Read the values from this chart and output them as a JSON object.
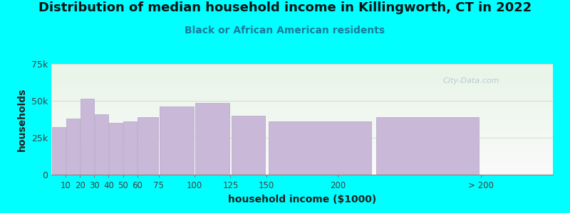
{
  "title": "Distribution of median household income in Killingworth, CT in 2022",
  "subtitle": "Black or African American residents",
  "xlabel": "household income ($1000)",
  "ylabel": "households",
  "bar_lefts": [
    0,
    10,
    20,
    30,
    40,
    50,
    60,
    75,
    100,
    125,
    150,
    225
  ],
  "bar_widths": [
    10,
    10,
    10,
    10,
    10,
    10,
    15,
    25,
    25,
    25,
    75,
    75
  ],
  "values": [
    32000,
    38000,
    51500,
    41000,
    35000,
    36000,
    39000,
    46000,
    48500,
    40000,
    36000,
    39000
  ],
  "xtick_positions": [
    10,
    20,
    30,
    40,
    50,
    60,
    75,
    100,
    125,
    150,
    200,
    300
  ],
  "xtick_labels": [
    "10",
    "20",
    "30",
    "40",
    "50",
    "60",
    "75",
    "100",
    "125",
    "150",
    "200",
    "> 200"
  ],
  "bar_color": "#c9b8d8",
  "bar_edge_color": "#b5a4c8",
  "background_color": "#00ffff",
  "plot_bg_top": "#e8f5e8",
  "plot_bg_bottom": "#fafafa",
  "ylim": [
    0,
    75000
  ],
  "xlim": [
    0,
    350
  ],
  "yticks": [
    0,
    25000,
    50000,
    75000
  ],
  "ytick_labels": [
    "0",
    "25k",
    "50k",
    "75k"
  ],
  "watermark": "City-Data.com",
  "title_fontsize": 13,
  "subtitle_fontsize": 10,
  "axis_label_fontsize": 10
}
